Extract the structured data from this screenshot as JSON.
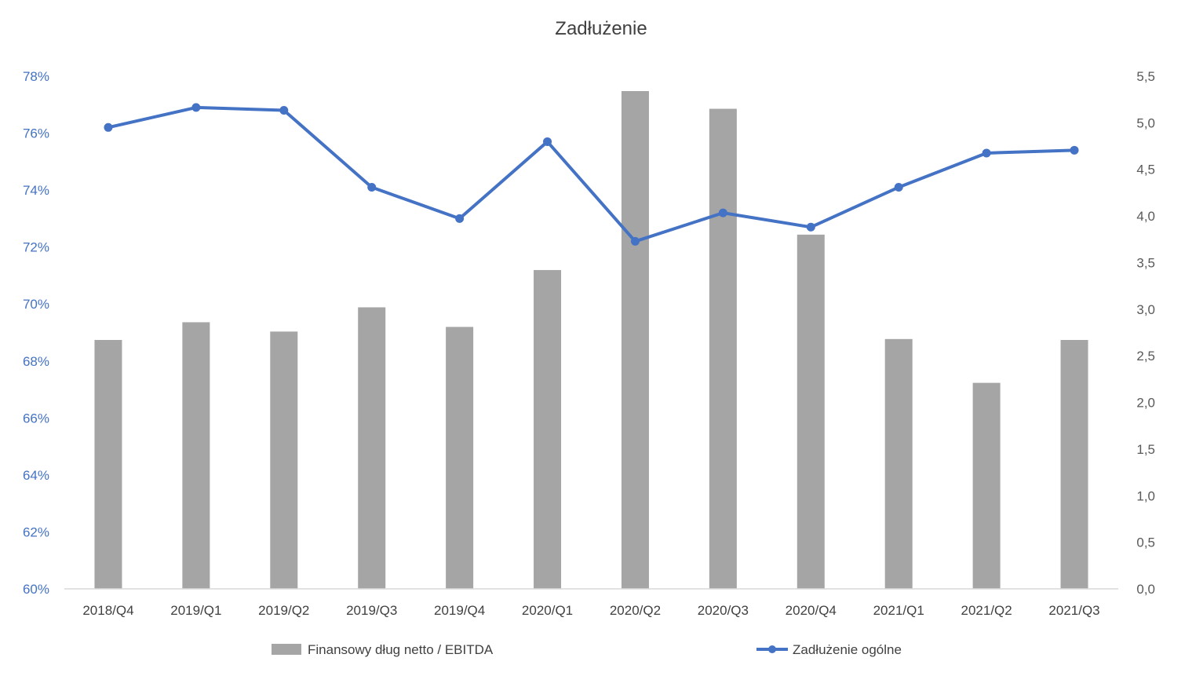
{
  "chart_data": {
    "type": "bar",
    "title": "Zadłużenie",
    "categories": [
      "2018/Q4",
      "2019/Q1",
      "2019/Q2",
      "2019/Q3",
      "2019/Q4",
      "2020/Q1",
      "2020/Q2",
      "2020/Q3",
      "2020/Q4",
      "2021/Q1",
      "2021/Q2",
      "2021/Q3"
    ],
    "series": [
      {
        "name": "Finansowy dług netto / EBITDA",
        "type": "bar",
        "axis": "right",
        "color": "#a5a5a5",
        "values": [
          2.67,
          2.86,
          2.76,
          3.02,
          2.81,
          3.42,
          5.34,
          5.15,
          3.8,
          2.68,
          2.21,
          2.67
        ]
      },
      {
        "name": "Zadłużenie ogólne",
        "type": "line",
        "axis": "left",
        "color": "#4472c4",
        "values": [
          76.2,
          76.9,
          76.8,
          74.1,
          73.0,
          75.7,
          72.2,
          73.2,
          72.7,
          74.1,
          75.3,
          75.4
        ]
      }
    ],
    "y_left": {
      "min": 60,
      "max": 78,
      "step": 2,
      "ticks": [
        "60%",
        "62%",
        "64%",
        "66%",
        "68%",
        "70%",
        "72%",
        "74%",
        "76%",
        "78%"
      ]
    },
    "y_right": {
      "min": 0,
      "max": 5.5,
      "step": 0.5,
      "ticks": [
        "0,0",
        "0,5",
        "1,0",
        "1,5",
        "2,0",
        "2,5",
        "3,0",
        "3,5",
        "4,0",
        "4,5",
        "5,0",
        "5,5"
      ]
    },
    "grid": false,
    "legend_position": "bottom"
  }
}
